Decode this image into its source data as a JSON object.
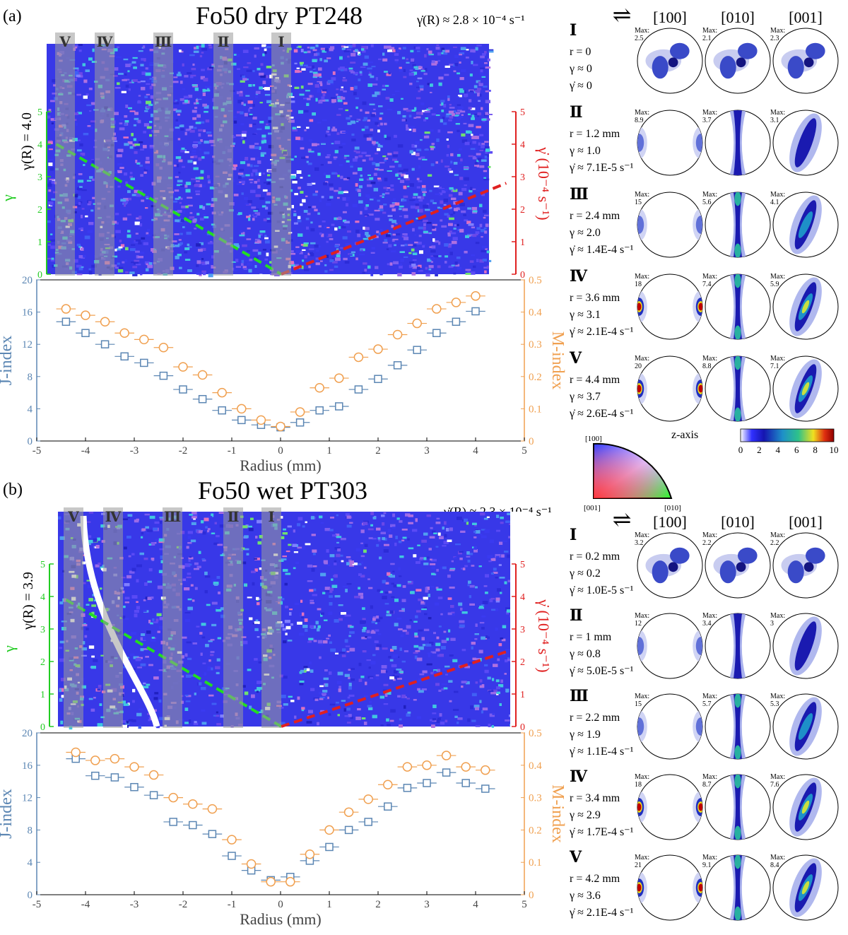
{
  "chart_data": [
    {
      "panel": "(a)",
      "title": "Fo50 dry PT248",
      "strain_rate_note": "γ̇(R) ≈ 2.8 × 10⁻⁴ s⁻¹",
      "gamma_R": "γ(R) = 4.0",
      "type": "scatter",
      "strain_map": {
        "zone_labels": [
          "Ⅴ",
          "Ⅳ",
          "Ⅲ",
          "Ⅱ",
          "Ⅰ"
        ],
        "left_axis": {
          "label": "γ",
          "ticks": [
            "0",
            "1",
            "2",
            "3",
            "4",
            "5"
          ],
          "color": "#22cc22"
        },
        "right_axis": {
          "label": "γ̇ (10⁻⁴ s⁻¹)",
          "ticks": [
            "0",
            "1",
            "2",
            "3",
            "4",
            "5"
          ],
          "color": "#e02020"
        },
        "gamma_line": {
          "x": [
            -4.6,
            0
          ],
          "y": [
            4.0,
            0
          ]
        },
        "rate_line": {
          "x": [
            0,
            4.6
          ],
          "y": [
            0,
            2.8
          ]
        }
      },
      "xlabel": "Radius (mm)",
      "ylabel": "J-index",
      "y2label": "M-index",
      "xlim": [
        -5,
        5
      ],
      "ylim": [
        0,
        20
      ],
      "y2lim": [
        0,
        0.5
      ],
      "xticks": [
        "-5",
        "-4",
        "-3",
        "-2",
        "-1",
        "0",
        "1",
        "2",
        "3",
        "4",
        "5"
      ],
      "yticks": [
        "0",
        "4",
        "8",
        "12",
        "16",
        "20"
      ],
      "y2ticks": [
        "0",
        "0.1",
        "0.2",
        "0.3",
        "0.4",
        "0.5"
      ],
      "series": [
        {
          "name": "J-index",
          "axis": "left",
          "marker": "square",
          "color": "#5b86b3",
          "x": [
            -4.4,
            -4.0,
            -3.6,
            -3.2,
            -2.8,
            -2.4,
            -2.0,
            -1.6,
            -1.2,
            -0.8,
            -0.4,
            0.0,
            0.4,
            0.8,
            1.2,
            1.6,
            2.0,
            2.4,
            2.8,
            3.2,
            3.6,
            4.0
          ],
          "y": [
            14.8,
            13.4,
            12.0,
            10.5,
            9.7,
            8.1,
            6.4,
            5.2,
            3.8,
            2.6,
            2.0,
            1.7,
            2.3,
            3.8,
            4.3,
            6.4,
            7.7,
            9.4,
            11.3,
            13.4,
            14.8,
            16.1
          ]
        },
        {
          "name": "M-index",
          "axis": "right",
          "marker": "circle",
          "color": "#f0a050",
          "x": [
            -4.4,
            -4.0,
            -3.6,
            -3.2,
            -2.8,
            -2.4,
            -2.0,
            -1.6,
            -1.2,
            -0.8,
            -0.4,
            0.0,
            0.4,
            0.8,
            1.2,
            1.6,
            2.0,
            2.4,
            2.8,
            3.2,
            3.6,
            4.0
          ],
          "y": [
            0.41,
            0.39,
            0.37,
            0.335,
            0.315,
            0.29,
            0.23,
            0.205,
            0.15,
            0.1,
            0.065,
            0.045,
            0.09,
            0.165,
            0.195,
            0.26,
            0.285,
            0.33,
            0.365,
            0.41,
            0.43,
            0.45
          ]
        }
      ],
      "pole_figures": {
        "columns": [
          "[100]",
          "[010]",
          "[001]"
        ],
        "rows": [
          {
            "zone": "Ⅰ",
            "r": "r = 0",
            "gamma": "γ ≈ 0",
            "rate": "γ̇ ≈ 0",
            "max": [
              "2.5",
              "2.1",
              "2.3"
            ]
          },
          {
            "zone": "Ⅱ",
            "r": "r = 1.2 mm",
            "gamma": "γ ≈ 1.0",
            "rate": "γ̇ ≈ 7.1E-5 s⁻¹",
            "max": [
              "8.9",
              "3.7",
              "3.1"
            ]
          },
          {
            "zone": "Ⅲ",
            "r": "r = 2.4 mm",
            "gamma": "γ ≈ 2.0",
            "rate": "γ̇ ≈ 1.4E-4 s⁻¹",
            "max": [
              "15",
              "5.6",
              "4.1"
            ]
          },
          {
            "zone": "Ⅳ",
            "r": "r = 3.6 mm",
            "gamma": "γ ≈ 3.1",
            "rate": "γ̇ ≈ 2.1E-4 s⁻¹",
            "max": [
              "18",
              "7.4",
              "5.9"
            ]
          },
          {
            "zone": "Ⅴ",
            "r": "r = 4.4 mm",
            "gamma": "γ ≈ 3.7",
            "rate": "γ̇ ≈ 2.6E-4 s⁻¹",
            "max": [
              "20",
              "8.8",
              "7.1"
            ]
          }
        ]
      }
    },
    {
      "panel": "(b)",
      "title": "Fo50 wet PT303",
      "strain_rate_note": "γ̇(R) ≈ 2.3 × 10⁻⁴ s⁻¹",
      "gamma_R": "γ(R) = 3.9",
      "type": "scatter",
      "strain_map": {
        "zone_labels": [
          "Ⅴ",
          "Ⅳ",
          "Ⅲ",
          "Ⅱ",
          "Ⅰ"
        ],
        "left_axis": {
          "label": "γ",
          "ticks": [
            "0",
            "1",
            "2",
            "3",
            "4",
            "5"
          ],
          "color": "#22cc22"
        },
        "right_axis": {
          "label": "γ̇ (10⁻⁴ s⁻¹)",
          "ticks": [
            "0",
            "1",
            "2",
            "3",
            "4",
            "5"
          ],
          "color": "#e02020"
        },
        "gamma_line": {
          "x": [
            -4.4,
            0
          ],
          "y": [
            3.9,
            0
          ]
        },
        "rate_line": {
          "x": [
            0,
            4.6
          ],
          "y": [
            0,
            2.3
          ]
        }
      },
      "xlabel": "Radius (mm)",
      "ylabel": "J-index",
      "y2label": "M-index",
      "xlim": [
        -5,
        5
      ],
      "ylim": [
        0,
        20
      ],
      "y2lim": [
        0,
        0.5
      ],
      "xticks": [
        "-5",
        "-4",
        "-3",
        "-2",
        "-1",
        "0",
        "1",
        "2",
        "3",
        "4",
        "5"
      ],
      "yticks": [
        "0",
        "4",
        "8",
        "12",
        "16",
        "20"
      ],
      "y2ticks": [
        "0",
        "0.1",
        "0.2",
        "0.3",
        "0.4",
        "0.5"
      ],
      "series": [
        {
          "name": "J-index",
          "axis": "left",
          "marker": "square",
          "color": "#5b86b3",
          "x": [
            -4.2,
            -3.8,
            -3.4,
            -3.0,
            -2.6,
            -2.2,
            -1.8,
            -1.4,
            -1.0,
            -0.6,
            -0.2,
            0.2,
            0.6,
            1.0,
            1.4,
            1.8,
            2.2,
            2.6,
            3.0,
            3.4,
            3.8,
            4.2
          ],
          "y": [
            16.8,
            14.7,
            14.5,
            13.3,
            12.3,
            9.0,
            8.6,
            7.5,
            4.8,
            3.0,
            1.8,
            2.2,
            4.2,
            5.9,
            8.0,
            9.0,
            10.9,
            13.2,
            13.8,
            15.1,
            13.8,
            13.1
          ]
        },
        {
          "name": "M-index",
          "axis": "right",
          "marker": "circle",
          "color": "#f0a050",
          "x": [
            -4.2,
            -3.8,
            -3.4,
            -3.0,
            -2.6,
            -2.2,
            -1.8,
            -1.4,
            -1.0,
            -0.6,
            -0.2,
            0.2,
            0.6,
            1.0,
            1.4,
            1.8,
            2.2,
            2.6,
            3.0,
            3.4,
            3.8,
            4.2
          ],
          "y": [
            0.44,
            0.415,
            0.42,
            0.395,
            0.37,
            0.3,
            0.28,
            0.265,
            0.17,
            0.095,
            0.04,
            0.04,
            0.125,
            0.2,
            0.255,
            0.295,
            0.34,
            0.395,
            0.4,
            0.43,
            0.395,
            0.385
          ]
        }
      ],
      "pole_figures": {
        "columns": [
          "[100]",
          "[010]",
          "[001]"
        ],
        "rows": [
          {
            "zone": "Ⅰ",
            "r": "r = 0.2 mm",
            "gamma": "γ ≈ 0.2",
            "rate": "γ̇ ≈ 1.0E-5 s⁻¹",
            "max": [
              "3.2",
              "2.2",
              "2.2"
            ]
          },
          {
            "zone": "Ⅱ",
            "r": "r = 1 mm",
            "gamma": "γ ≈ 0.8",
            "rate": "γ̇ ≈ 5.0E-5 s⁻¹",
            "max": [
              "12",
              "3.4",
              "3"
            ]
          },
          {
            "zone": "Ⅲ",
            "r": "r = 2.2 mm",
            "gamma": "γ ≈ 1.9",
            "rate": "γ̇ ≈ 1.1E-4 s⁻¹",
            "max": [
              "15",
              "5.7",
              "5.3"
            ]
          },
          {
            "zone": "Ⅳ",
            "r": "r = 3.4 mm",
            "gamma": "γ ≈ 2.9",
            "rate": "γ̇ ≈ 1.7E-4 s⁻¹",
            "max": [
              "18",
              "8.7",
              "7.6"
            ]
          },
          {
            "zone": "Ⅴ",
            "r": "r = 4.2 mm",
            "gamma": "γ ≈ 3.6",
            "rate": "γ̇ ≈ 2.1E-4 s⁻¹",
            "max": [
              "21",
              "9.1",
              "8.4"
            ]
          }
        ]
      }
    }
  ],
  "colorbar": {
    "ticks": [
      "0",
      "2",
      "4",
      "6",
      "8",
      "10"
    ],
    "colors": [
      "#ffffff",
      "#1515c8",
      "#1e90c8",
      "#2ec28a",
      "#f0e020",
      "#e03010",
      "#900000"
    ]
  },
  "ipf_key": {
    "title": "z-axis",
    "corner_labels": [
      "[100]",
      "[001]",
      "[010]"
    ]
  },
  "max_prefix": "Max:"
}
